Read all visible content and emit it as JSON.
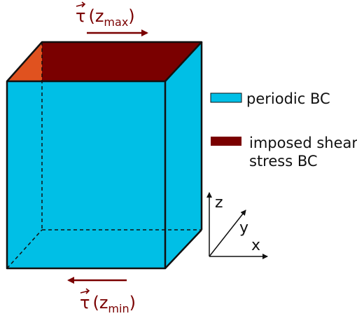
{
  "colors": {
    "periodic_fill": "#00bfe6",
    "shear_fill": "#7a0000",
    "side_face_fill": "#e0521f",
    "edge": "#111111",
    "arrow": "#7a0000"
  },
  "top_stress": {
    "symbol": "τ",
    "open": "(z",
    "sub": "max",
    "close": ")"
  },
  "bottom_stress": {
    "symbol": "τ",
    "open": "(z",
    "sub": "min",
    "close": ")"
  },
  "legend": {
    "periodic_label": "periodic BC",
    "shear_label_line1": "imposed shear",
    "shear_label_line2": "stress BC"
  },
  "axes": {
    "z": "z",
    "y": "y",
    "x": "x"
  }
}
